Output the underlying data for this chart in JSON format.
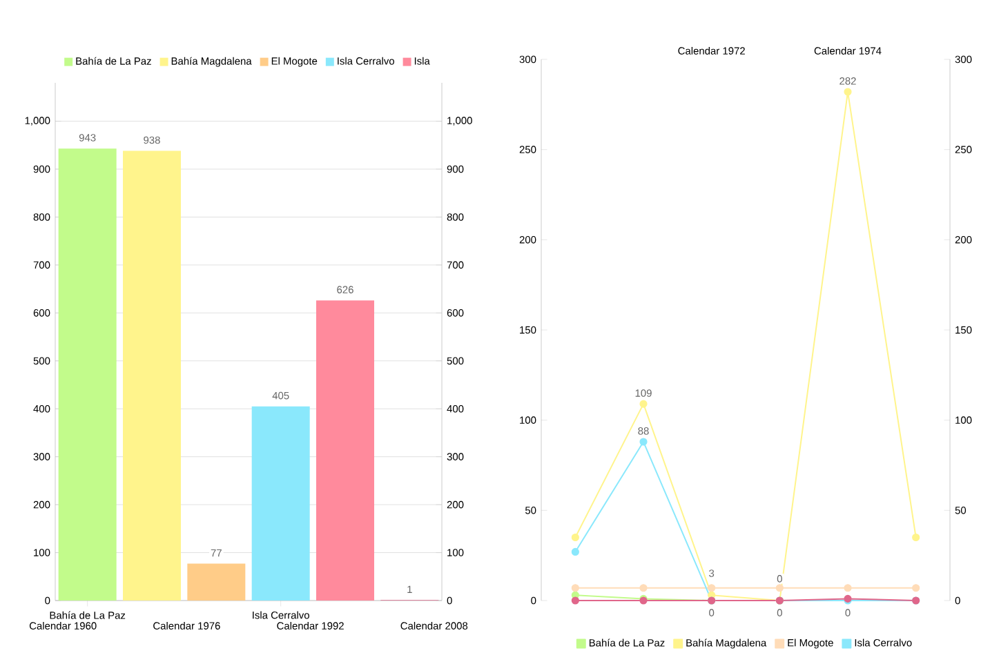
{
  "chart_data": [
    {
      "type": "bar",
      "categories": [
        "Bahía de La Paz",
        null,
        null,
        "Isla Cerralvo",
        null,
        null
      ],
      "series": [
        {
          "name": "Bahía de La Paz",
          "color": "#c2fb8b",
          "values": [
            943,
            null,
            null,
            null,
            null,
            null
          ]
        },
        {
          "name": "Bahía Magdalena",
          "color": "#fff48c",
          "values": [
            null,
            938,
            null,
            null,
            null,
            null
          ]
        },
        {
          "name": "El Mogote",
          "color": "#ffcc88",
          "values": [
            null,
            null,
            77,
            null,
            null,
            null
          ]
        },
        {
          "name": "Isla Cerralvo",
          "color": "#8ae8fc",
          "values": [
            null,
            null,
            null,
            405,
            null,
            null
          ]
        },
        {
          "name": "Isla",
          "color": "#ff8a9c",
          "values": [
            null,
            null,
            null,
            null,
            626,
            null
          ]
        },
        {
          "color": "#e0668a",
          "values": [
            null,
            null,
            null,
            null,
            null,
            1
          ]
        }
      ],
      "ylim": [
        0,
        1080
      ],
      "yticks": [
        0,
        100,
        200,
        300,
        400,
        500,
        600,
        700,
        800,
        900,
        {
          "value": 1000,
          "label": "1,000"
        }
      ],
      "y2lim": [
        0,
        1080
      ],
      "y2ticks": [
        0,
        100,
        200,
        300,
        400,
        500,
        600,
        700,
        800,
        900,
        {
          "value": 1000,
          "label": "1,000"
        }
      ],
      "grid": "y",
      "legend": "top",
      "data_labels": true,
      "annotations": [
        "Calendar 1960",
        "Calendar 1976",
        "Calendar 1992",
        "Calendar 2008"
      ]
    },
    {
      "type": "line",
      "categories": [
        null,
        null,
        "Calendar 1972",
        null,
        "Calendar 1974",
        null
      ],
      "series": [
        {
          "name": "Bahía de La Paz",
          "color": "#c2fb8b",
          "values": [
            3,
            1,
            0,
            0,
            null,
            null
          ]
        },
        {
          "name": "Bahía Magdalena",
          "color": "#fff48c",
          "values": [
            35,
            109,
            3,
            0,
            282,
            35
          ],
          "value_labels": [
            null,
            "109",
            "3",
            "0",
            "282",
            null
          ]
        },
        {
          "name": "El Mogote",
          "color": "#ffdcb8",
          "values": [
            7,
            7,
            7,
            7,
            7,
            7
          ]
        },
        {
          "name": "Isla Cerralvo",
          "color": "#8ae8fc",
          "values": [
            27,
            88,
            0,
            0,
            0,
            0
          ],
          "value_labels": [
            null,
            "88",
            "0",
            "0",
            "0",
            null
          ]
        },
        {
          "color": "#e0668a",
          "values": [
            0,
            0,
            0,
            0,
            1,
            0
          ]
        }
      ],
      "ylim": [
        0,
        300
      ],
      "yticks": [
        0,
        50,
        100,
        150,
        200,
        250,
        300
      ],
      "y2lim": [
        0,
        300
      ],
      "y2ticks": [
        0,
        50,
        100,
        150,
        200,
        250,
        300
      ],
      "grid": false,
      "legend": "bottom",
      "marker": "circle"
    }
  ]
}
